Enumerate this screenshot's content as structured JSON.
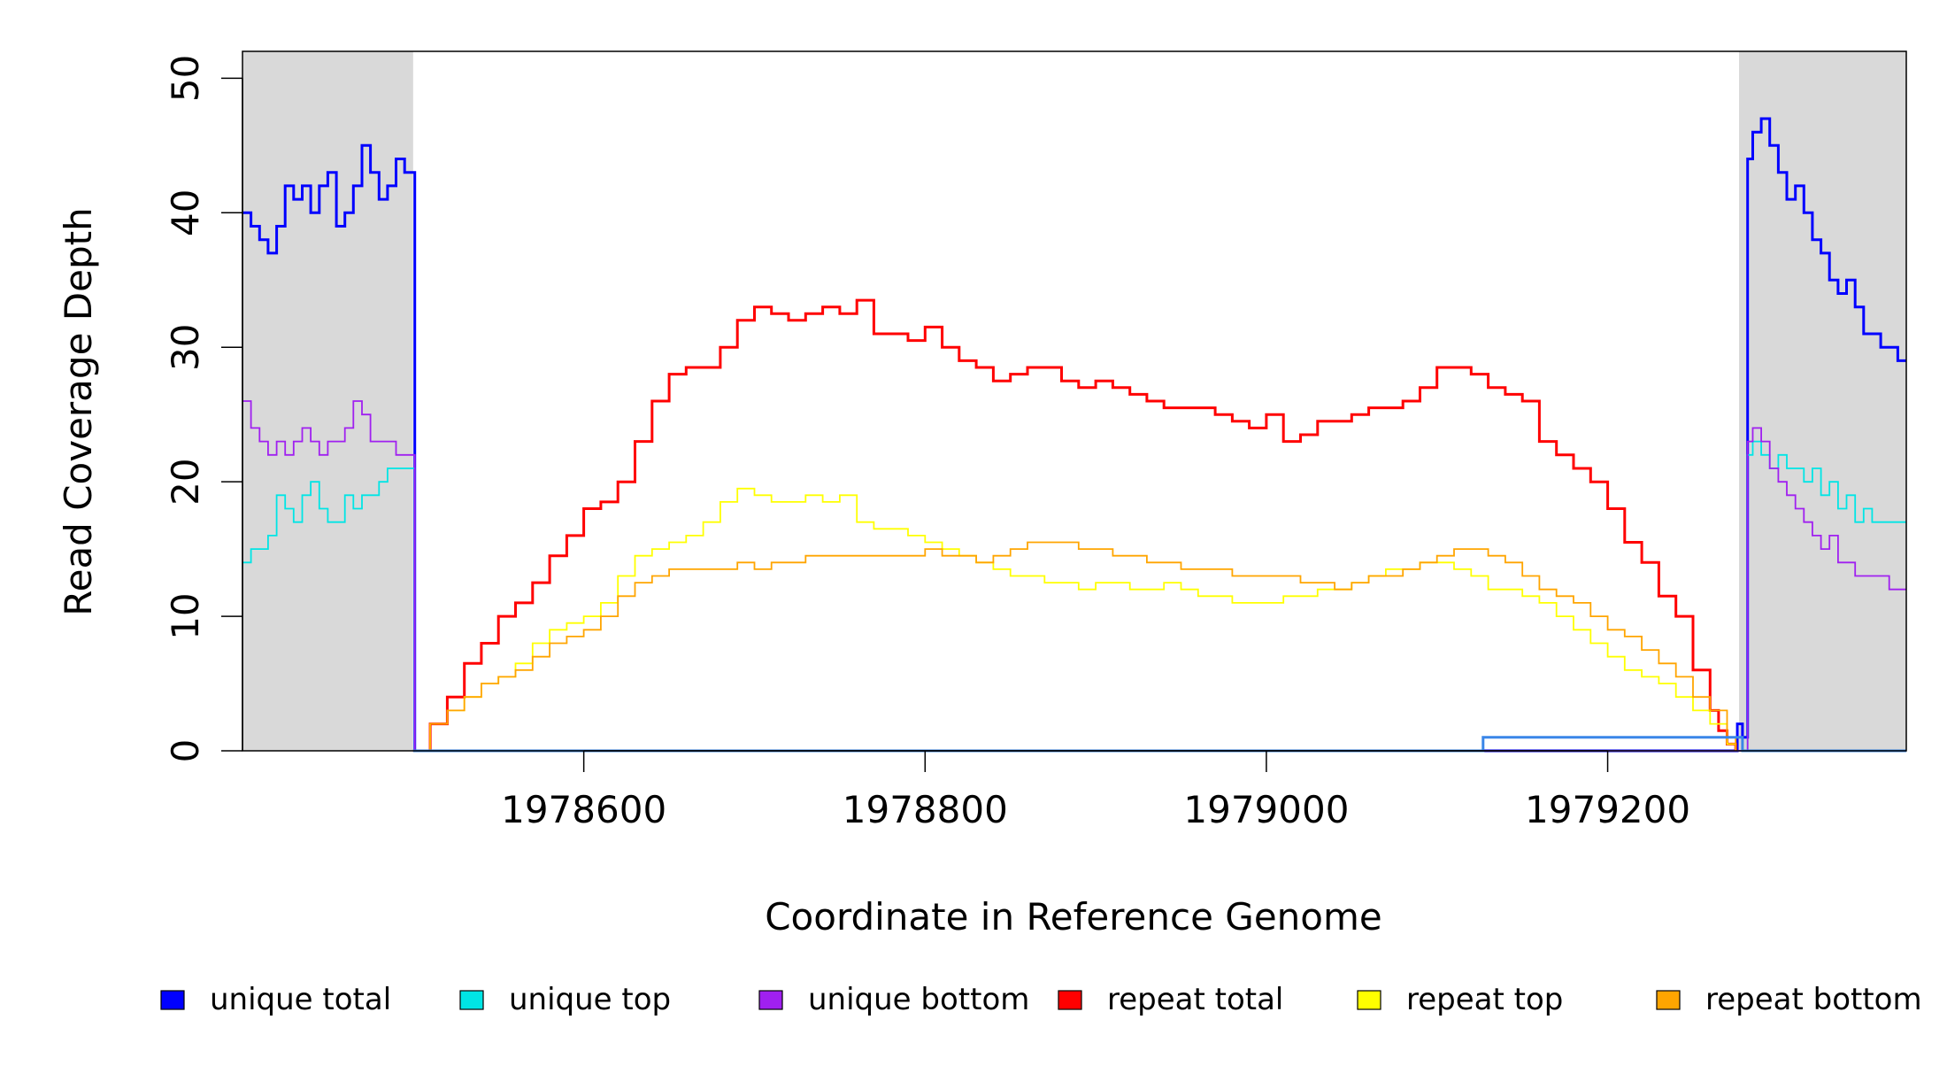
{
  "chart_data": {
    "type": "line",
    "xlabel": "Coordinate in Reference Genome",
    "ylabel": "Read Coverage Depth",
    "xlim": [
      1978400,
      1979375
    ],
    "ylim": [
      0,
      52
    ],
    "x_ticks": [
      1978600,
      1978800,
      1979000,
      1979200
    ],
    "x_tick_labels": [
      "1978600",
      "1978800",
      "1979000",
      "1979200"
    ],
    "y_ticks": [
      0,
      10,
      20,
      30,
      40,
      50
    ],
    "y_tick_labels": [
      "0",
      "10",
      "20",
      "30",
      "40",
      "50"
    ],
    "shaded_regions": [
      [
        1978400,
        1978500
      ],
      [
        1979277,
        1979375
      ]
    ],
    "legend_position": "bottom",
    "series": [
      {
        "name": "unique total",
        "color": "#0000ff",
        "x": [
          1978400,
          1978405,
          1978410,
          1978415,
          1978420,
          1978425,
          1978430,
          1978435,
          1978440,
          1978445,
          1978450,
          1978455,
          1978460,
          1978465,
          1978470,
          1978475,
          1978480,
          1978485,
          1978490,
          1978495,
          1978500,
          1978501,
          1979275,
          1979276,
          1979279,
          1979282,
          1979285,
          1979290,
          1979295,
          1979300,
          1979305,
          1979310,
          1979315,
          1979320,
          1979325,
          1979330,
          1979335,
          1979340,
          1979345,
          1979350,
          1979355,
          1979360,
          1979365,
          1979370,
          1979375
        ],
        "y": [
          40,
          39,
          38,
          37,
          39,
          42,
          41,
          42,
          40,
          42,
          43,
          39,
          40,
          42,
          45,
          43,
          41,
          42,
          44,
          43,
          43,
          0,
          0,
          2,
          1,
          44,
          46,
          47,
          45,
          43,
          41,
          42,
          40,
          38,
          37,
          35,
          34,
          35,
          33,
          31,
          31,
          30,
          30,
          29,
          29
        ]
      },
      {
        "name": "unique top",
        "color": "#00e5e5",
        "x": [
          1978400,
          1978405,
          1978410,
          1978415,
          1978420,
          1978425,
          1978430,
          1978435,
          1978440,
          1978445,
          1978450,
          1978455,
          1978460,
          1978465,
          1978470,
          1978475,
          1978480,
          1978485,
          1978490,
          1978495,
          1978500,
          1978501,
          1979279,
          1979282,
          1979285,
          1979290,
          1979295,
          1979300,
          1979305,
          1979310,
          1979315,
          1979320,
          1979325,
          1979330,
          1979335,
          1979340,
          1979345,
          1979350,
          1979355,
          1979360,
          1979365,
          1979370,
          1979375
        ],
        "y": [
          14,
          15,
          15,
          16,
          19,
          18,
          17,
          19,
          20,
          18,
          17,
          17,
          19,
          18,
          19,
          19,
          20,
          21,
          21,
          21,
          21,
          0,
          0,
          22,
          23,
          22,
          21,
          22,
          21,
          21,
          20,
          21,
          19,
          20,
          18,
          19,
          17,
          18,
          17,
          17,
          17,
          17,
          17
        ]
      },
      {
        "name": "unique bottom",
        "color": "#a020f0",
        "x": [
          1978400,
          1978405,
          1978410,
          1978415,
          1978420,
          1978425,
          1978430,
          1978435,
          1978440,
          1978445,
          1978450,
          1978455,
          1978460,
          1978465,
          1978470,
          1978475,
          1978480,
          1978485,
          1978490,
          1978495,
          1978500,
          1978501,
          1979279,
          1979282,
          1979285,
          1979290,
          1979295,
          1979300,
          1979305,
          1979310,
          1979315,
          1979320,
          1979325,
          1979330,
          1979335,
          1979340,
          1979345,
          1979350,
          1979355,
          1979360,
          1979365,
          1979370,
          1979375
        ],
        "y": [
          26,
          24,
          23,
          22,
          23,
          22,
          23,
          24,
          23,
          22,
          23,
          23,
          24,
          26,
          25,
          23,
          23,
          23,
          22,
          22,
          22,
          0,
          0,
          23,
          24,
          23,
          21,
          20,
          19,
          18,
          17,
          16,
          15,
          16,
          14,
          14,
          13,
          13,
          13,
          13,
          12,
          12,
          12
        ]
      },
      {
        "name": "repeat total",
        "color": "#ff0000",
        "x": [
          1978500,
          1978510,
          1978520,
          1978530,
          1978540,
          1978550,
          1978560,
          1978570,
          1978580,
          1978590,
          1978600,
          1978610,
          1978620,
          1978630,
          1978640,
          1978650,
          1978660,
          1978670,
          1978680,
          1978690,
          1978700,
          1978710,
          1978720,
          1978730,
          1978740,
          1978750,
          1978760,
          1978770,
          1978780,
          1978790,
          1978800,
          1978810,
          1978820,
          1978830,
          1978840,
          1978850,
          1978860,
          1978870,
          1978880,
          1978890,
          1978900,
          1978910,
          1978920,
          1978930,
          1978940,
          1978950,
          1978960,
          1978970,
          1978980,
          1978990,
          1979000,
          1979010,
          1979020,
          1979030,
          1979040,
          1979050,
          1979060,
          1979070,
          1979080,
          1979090,
          1979100,
          1979110,
          1979120,
          1979130,
          1979140,
          1979150,
          1979160,
          1979170,
          1979180,
          1979190,
          1979200,
          1979210,
          1979220,
          1979230,
          1979240,
          1979250,
          1979260,
          1979265,
          1979270,
          1979275
        ],
        "y": [
          0,
          2,
          4,
          6.5,
          8,
          10,
          11,
          12.5,
          14.5,
          16,
          18,
          18.5,
          20,
          23,
          26,
          28,
          28.5,
          28.5,
          30,
          32,
          33,
          32.5,
          32,
          32.5,
          33,
          32.5,
          33.5,
          31,
          31,
          30.5,
          31.5,
          30,
          29,
          28.5,
          27.5,
          28,
          28.5,
          28.5,
          27.5,
          27,
          27.5,
          27,
          26.5,
          26,
          25.5,
          25.5,
          25.5,
          25,
          24.5,
          24,
          25,
          23,
          23.5,
          24.5,
          24.5,
          25,
          25.5,
          25.5,
          26,
          27,
          28.5,
          28.5,
          28,
          27,
          26.5,
          26,
          23,
          22,
          21,
          20,
          18,
          15.5,
          14,
          11.5,
          10,
          6,
          3,
          1.5,
          0.5,
          0
        ]
      },
      {
        "name": "repeat top",
        "color": "#ffff00",
        "x": [
          1978500,
          1978510,
          1978520,
          1978530,
          1978540,
          1978550,
          1978560,
          1978570,
          1978580,
          1978590,
          1978600,
          1978610,
          1978620,
          1978630,
          1978640,
          1978650,
          1978660,
          1978670,
          1978680,
          1978690,
          1978700,
          1978710,
          1978720,
          1978730,
          1978740,
          1978750,
          1978760,
          1978770,
          1978780,
          1978790,
          1978800,
          1978810,
          1978820,
          1978830,
          1978840,
          1978850,
          1978860,
          1978870,
          1978880,
          1978890,
          1978900,
          1978910,
          1978920,
          1978930,
          1978940,
          1978950,
          1978960,
          1978970,
          1978980,
          1978990,
          1979000,
          1979010,
          1979020,
          1979030,
          1979040,
          1979050,
          1979060,
          1979070,
          1979080,
          1979090,
          1979100,
          1979110,
          1979120,
          1979130,
          1979140,
          1979150,
          1979160,
          1979170,
          1979180,
          1979190,
          1979200,
          1979210,
          1979220,
          1979230,
          1979240,
          1979250,
          1979260,
          1979270,
          1979275
        ],
        "y": [
          0,
          2,
          3,
          4,
          5,
          5.5,
          6.5,
          8,
          9,
          9.5,
          10,
          11,
          13,
          14.5,
          15,
          15.5,
          16,
          17,
          18.5,
          19.5,
          19,
          18.5,
          18.5,
          19,
          18.5,
          19,
          17,
          16.5,
          16.5,
          16,
          15.5,
          15,
          14.5,
          14,
          13.5,
          13,
          13,
          12.5,
          12.5,
          12,
          12.5,
          12.5,
          12,
          12,
          12.5,
          12,
          11.5,
          11.5,
          11,
          11,
          11,
          11.5,
          11.5,
          12,
          12,
          12.5,
          13,
          13.5,
          13.5,
          14,
          14,
          13.5,
          13,
          12,
          12,
          11.5,
          11,
          10,
          9,
          8,
          7,
          6,
          5.5,
          5,
          4,
          3,
          2,
          0.5,
          0
        ]
      },
      {
        "name": "repeat bottom",
        "color": "#ffa500",
        "x": [
          1978500,
          1978510,
          1978520,
          1978530,
          1978540,
          1978550,
          1978560,
          1978570,
          1978580,
          1978590,
          1978600,
          1978610,
          1978620,
          1978630,
          1978640,
          1978650,
          1978660,
          1978670,
          1978680,
          1978690,
          1978700,
          1978710,
          1978720,
          1978730,
          1978740,
          1978750,
          1978760,
          1978770,
          1978780,
          1978790,
          1978800,
          1978810,
          1978820,
          1978830,
          1978840,
          1978850,
          1978860,
          1978870,
          1978880,
          1978890,
          1978900,
          1978910,
          1978920,
          1978930,
          1978940,
          1978950,
          1978960,
          1978970,
          1978980,
          1978990,
          1979000,
          1979010,
          1979020,
          1979030,
          1979040,
          1979050,
          1979060,
          1979070,
          1979080,
          1979090,
          1979100,
          1979110,
          1979120,
          1979130,
          1979140,
          1979150,
          1979160,
          1979170,
          1979180,
          1979190,
          1979200,
          1979210,
          1979220,
          1979230,
          1979240,
          1979250,
          1979260,
          1979270,
          1979275
        ],
        "y": [
          0,
          2,
          3,
          4,
          5,
          5.5,
          6,
          7,
          8,
          8.5,
          9,
          10,
          11.5,
          12.5,
          13,
          13.5,
          13.5,
          13.5,
          13.5,
          14,
          13.5,
          14,
          14,
          14.5,
          14.5,
          14.5,
          14.5,
          14.5,
          14.5,
          14.5,
          15,
          14.5,
          14.5,
          14,
          14.5,
          15,
          15.5,
          15.5,
          15.5,
          15,
          15,
          14.5,
          14.5,
          14,
          14,
          13.5,
          13.5,
          13.5,
          13,
          13,
          13,
          13,
          12.5,
          12.5,
          12,
          12.5,
          13,
          13,
          13.5,
          14,
          14.5,
          15,
          15,
          14.5,
          14,
          13,
          12,
          11.5,
          11,
          10,
          9,
          8.5,
          7.5,
          6.5,
          5.5,
          4,
          3,
          1,
          0
        ]
      },
      {
        "name": "",
        "color": "#3a86e8",
        "x": [
          1978500,
          1979127,
          1979127,
          1979279,
          1979279,
          1979375
        ],
        "y": [
          0,
          0,
          1,
          1,
          0,
          0
        ]
      }
    ]
  }
}
